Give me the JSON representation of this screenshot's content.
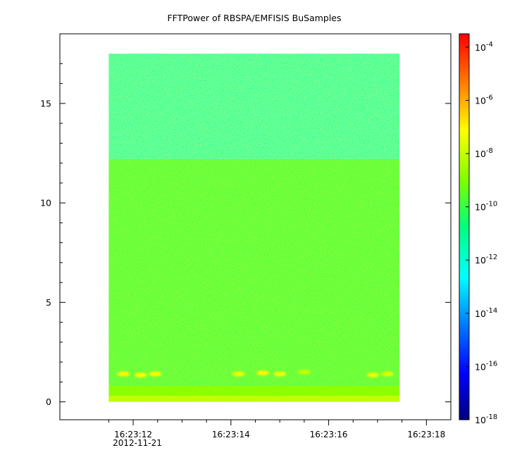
{
  "chart_data": {
    "type": "heatmap",
    "title": "FFTPower of RBSPA/EMFISIS  BuSamples",
    "xlabel": "",
    "ylabel": "",
    "x_ticks": [
      {
        "value": 12,
        "label": "16:23:12"
      },
      {
        "value": 14,
        "label": "16:23:14"
      },
      {
        "value": 16,
        "label": "16:23:16"
      },
      {
        "value": 18,
        "label": "16:23:18"
      }
    ],
    "x_minor_ticks": [
      11.5,
      12.5,
      13,
      13.5,
      14.5,
      15,
      15.5,
      16.5,
      17,
      17.5
    ],
    "x_date_label": "2012-11-21",
    "xlim": [
      10.5,
      18.5
    ],
    "y_ticks": [
      0,
      5,
      10,
      15
    ],
    "ylim": [
      -0.9,
      18.5
    ],
    "data_x_range": [
      11.5,
      17.45
    ],
    "data_y_range": [
      0,
      17.5
    ],
    "colorbar": {
      "scale": "log",
      "range": [
        -18,
        -3.5
      ],
      "ticks": [
        {
          "exp": -4,
          "label": "10",
          "sup": "-4"
        },
        {
          "exp": -6,
          "label": "10",
          "sup": "-6"
        },
        {
          "exp": -8,
          "label": "10",
          "sup": "-8"
        },
        {
          "exp": -10,
          "label": "10",
          "sup": "-10"
        },
        {
          "exp": -12,
          "label": "10",
          "sup": "-12"
        },
        {
          "exp": -14,
          "label": "10",
          "sup": "-14"
        },
        {
          "exp": -16,
          "label": "10",
          "sup": "-16"
        },
        {
          "exp": -18,
          "label": "10",
          "sup": "-18"
        }
      ]
    },
    "bands": [
      {
        "y_from": 12.2,
        "y_to": 17.5,
        "log_power": -11.2
      },
      {
        "y_from": 0.8,
        "y_to": 12.2,
        "log_power": -9.9
      },
      {
        "y_from": 0.3,
        "y_to": 0.8,
        "log_power": -9.2
      },
      {
        "y_from": 0,
        "y_to": 0.3,
        "log_power": -8.2
      }
    ],
    "bursts": [
      {
        "x": 11.8,
        "y": 1.4,
        "log_power": -7.0
      },
      {
        "x": 12.15,
        "y": 1.35,
        "log_power": -7.2
      },
      {
        "x": 12.45,
        "y": 1.4,
        "log_power": -7.0
      },
      {
        "x": 14.15,
        "y": 1.4,
        "log_power": -7.4
      },
      {
        "x": 14.65,
        "y": 1.45,
        "log_power": -7.0
      },
      {
        "x": 15.0,
        "y": 1.4,
        "log_power": -7.4
      },
      {
        "x": 15.5,
        "y": 1.5,
        "log_power": -8.0
      },
      {
        "x": 16.9,
        "y": 1.35,
        "log_power": -7.4
      },
      {
        "x": 17.2,
        "y": 1.4,
        "log_power": -7.6
      }
    ],
    "colors": {
      "background": "#ffffff",
      "axis": "#000000"
    }
  }
}
